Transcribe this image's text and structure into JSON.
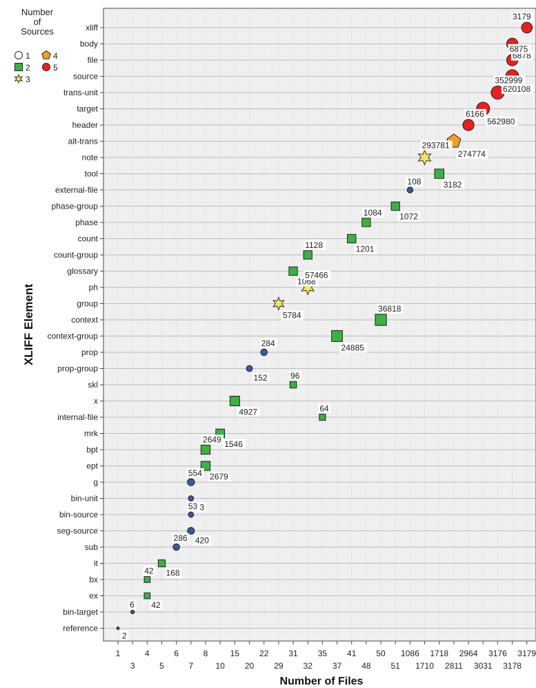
{
  "chart_data": {
    "type": "scatter",
    "xlabel": "Number of Files",
    "ylabel": "XLIFF Element",
    "x_ticks": [
      "1",
      "3",
      "4",
      "5",
      "6",
      "7",
      "8",
      "10",
      "15",
      "20",
      "22",
      "29",
      "31",
      "32",
      "35",
      "37",
      "41",
      "48",
      "50",
      "51",
      "1086",
      "1710",
      "1718",
      "2811",
      "2964",
      "3031",
      "3176",
      "3178",
      "3179"
    ],
    "y_categories": [
      "xliff",
      "body",
      "file",
      "source",
      "trans-unit",
      "target",
      "header",
      "alt-trans",
      "note",
      "tool",
      "external-file",
      "phase-group",
      "phase",
      "count",
      "count-group",
      "glossary",
      "ph",
      "group",
      "context",
      "context-group",
      "prop",
      "prop-group",
      "skl",
      "x",
      "internal-file",
      "mrk",
      "bpt",
      "ept",
      "g",
      "bin-unit",
      "bin-source",
      "seg-source",
      "sub",
      "it",
      "bx",
      "ex",
      "bin-target",
      "reference"
    ],
    "legend": {
      "title": "Number of Sources",
      "position": "top-left",
      "entries": [
        {
          "label": "1",
          "shape": "circle",
          "color": "#ffffff"
        },
        {
          "label": "2",
          "shape": "square",
          "color": "#3cb043"
        },
        {
          "label": "3",
          "shape": "star",
          "color": "#f5e35a"
        },
        {
          "label": "4",
          "shape": "pentagon",
          "color": "#f0a020"
        },
        {
          "label": "5",
          "shape": "circle",
          "color": "#e82020"
        }
      ]
    },
    "series_colors": {
      "1": "#3a5a9e",
      "2": "#3cb043",
      "3": "#f5e35a",
      "4": "#f0a020",
      "5": "#e82020"
    },
    "points": [
      {
        "element": "xliff",
        "files": "3179",
        "sources": 5,
        "label": "3179"
      },
      {
        "element": "body",
        "files": "3178",
        "sources": 5,
        "label": "6878"
      },
      {
        "element": "file",
        "files": "3178",
        "sources": 5,
        "label": "6875"
      },
      {
        "element": "source",
        "files": "3178",
        "sources": 5,
        "label": "620108"
      },
      {
        "element": "trans-unit",
        "files": "3176",
        "sources": 5,
        "label": "352999"
      },
      {
        "element": "target",
        "files": "3031",
        "sources": 5,
        "label": "562980"
      },
      {
        "element": "header",
        "files": "2964",
        "sources": 5,
        "label": "6166"
      },
      {
        "element": "alt-trans",
        "files": "2811",
        "sources": 4,
        "label": "274774"
      },
      {
        "element": "note",
        "files": "1710",
        "sources": 3,
        "label": "293781"
      },
      {
        "element": "tool",
        "files": "1718",
        "sources": 2,
        "label": "3182"
      },
      {
        "element": "external-file",
        "files": "1086",
        "sources": 1,
        "label": "108"
      },
      {
        "element": "phase-group",
        "files": "51",
        "sources": 2,
        "label": "1072"
      },
      {
        "element": "phase",
        "files": "48",
        "sources": 2,
        "label": "1084"
      },
      {
        "element": "count",
        "files": "41",
        "sources": 2,
        "label": "1201"
      },
      {
        "element": "count-group",
        "files": "32",
        "sources": 2,
        "label": "1128"
      },
      {
        "element": "glossary",
        "files": "31",
        "sources": 2,
        "label": "1068"
      },
      {
        "element": "ph",
        "files": "32",
        "sources": 3,
        "label": "57466"
      },
      {
        "element": "group",
        "files": "29",
        "sources": 3,
        "label": "5784"
      },
      {
        "element": "context",
        "files": "50",
        "sources": 2,
        "label": "36818"
      },
      {
        "element": "context-group",
        "files": "37",
        "sources": 2,
        "label": "24885"
      },
      {
        "element": "prop",
        "files": "22",
        "sources": 1,
        "label": "284"
      },
      {
        "element": "prop-group",
        "files": "20",
        "sources": 1,
        "label": "152"
      },
      {
        "element": "skl",
        "files": "31",
        "sources": 2,
        "label": "96"
      },
      {
        "element": "x",
        "files": "15",
        "sources": 2,
        "label": "4927"
      },
      {
        "element": "internal-file",
        "files": "35",
        "sources": 2,
        "label": "64"
      },
      {
        "element": "mrk",
        "files": "10",
        "sources": 2,
        "label": "1546"
      },
      {
        "element": "bpt",
        "files": "8",
        "sources": 2,
        "label": "2649"
      },
      {
        "element": "ept",
        "files": "8",
        "sources": 2,
        "label": "2679"
      },
      {
        "element": "g",
        "files": "7",
        "sources": 1,
        "label": "554"
      },
      {
        "element": "bin-unit",
        "files": "7",
        "sources": 1,
        "label": "53"
      },
      {
        "element": "bin-source",
        "files": "7",
        "sources": 1,
        "label": "53"
      },
      {
        "element": "seg-source",
        "files": "7",
        "sources": 1,
        "label": "420"
      },
      {
        "element": "sub",
        "files": "6",
        "sources": 1,
        "label": "286"
      },
      {
        "element": "it",
        "files": "5",
        "sources": 2,
        "label": "168"
      },
      {
        "element": "bx",
        "files": "4",
        "sources": 2,
        "label": "42"
      },
      {
        "element": "ex",
        "files": "4",
        "sources": 2,
        "label": "42"
      },
      {
        "element": "bin-target",
        "files": "3",
        "sources": 1,
        "label": "6"
      },
      {
        "element": "reference",
        "files": "1",
        "sources": 1,
        "label": "2"
      }
    ]
  }
}
